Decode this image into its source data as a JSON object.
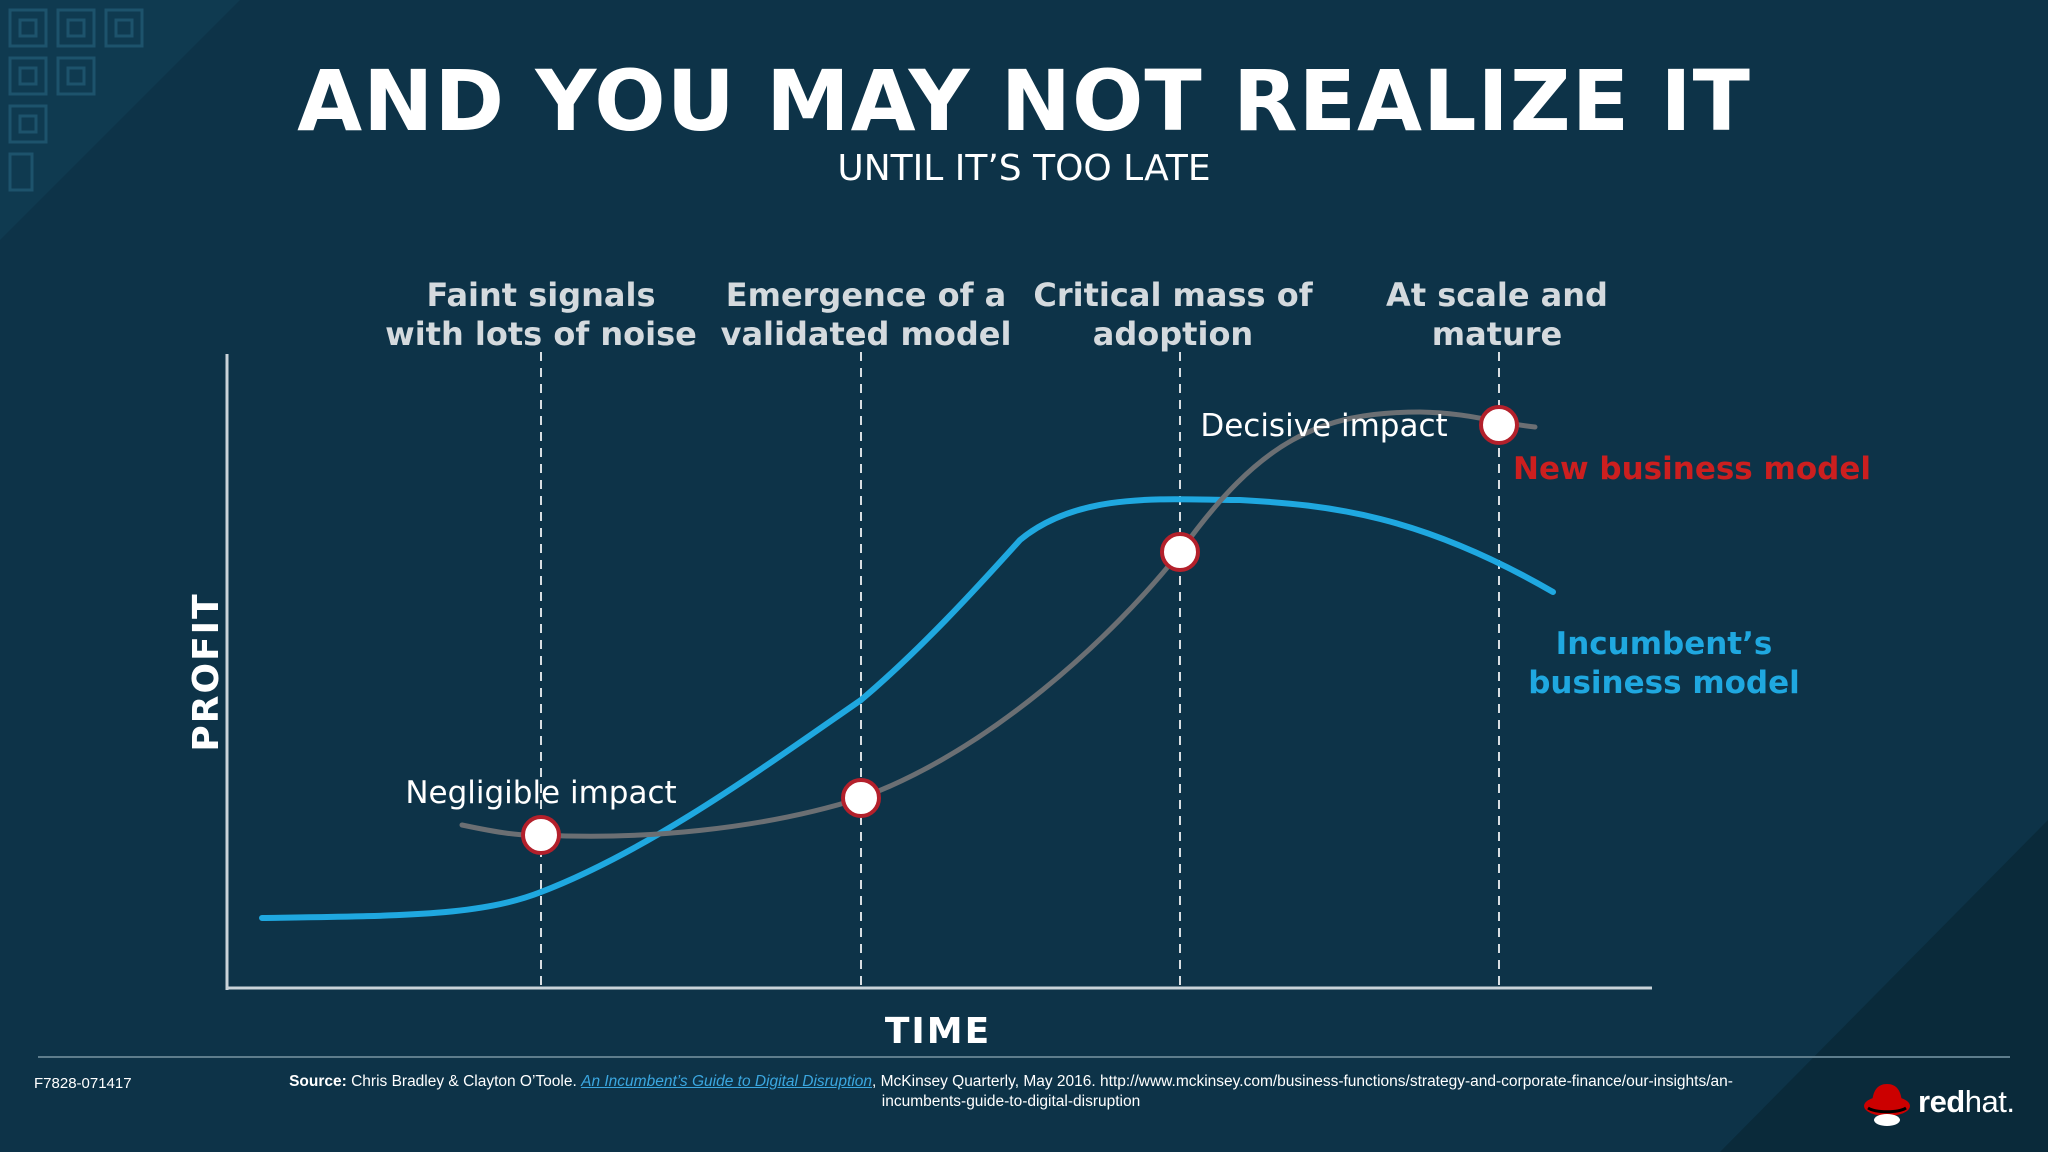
{
  "slide": {
    "title": "AND YOU MAY NOT REALIZE IT",
    "subtitle": "UNTIL IT’S TOO LATE"
  },
  "diagram": {
    "y_axis_label": "PROFIT",
    "x_axis_label": "TIME",
    "stages": [
      {
        "line1": "Faint signals",
        "line2": "with lots of noise"
      },
      {
        "line1": "Emergence of a",
        "line2": "validated model"
      },
      {
        "line1": "Critical mass of",
        "line2": "adoption"
      },
      {
        "line1": "At scale and",
        "line2": "mature"
      }
    ],
    "impact_labels": {
      "negligible": "Negligible impact",
      "decisive": "Decisive impact"
    },
    "curves": {
      "new": {
        "label": "New business model",
        "color": "#cc1f1f",
        "line_color": "#6b6f73"
      },
      "incumbent": {
        "line1": "Incumbent’s",
        "line2": "business model",
        "color": "#1fa8e0"
      }
    },
    "marker_colors": {
      "fill": "#ffffff",
      "stroke": "#b3202b"
    }
  },
  "footer": {
    "code": "F7828-071417",
    "source_label": "Source:",
    "source_authors": " Chris Bradley & Clayton O’Toole. ",
    "source_link": "An Incumbent’s Guide to Digital Disruption",
    "source_rest": ", McKinsey Quarterly, May 2016. http://www.mckinsey.com/business-functions/strategy-and-corporate-finance/our-insights/an-",
    "source_line2": "incumbents-guide-to-digital-disruption"
  },
  "logo": {
    "bold": "red",
    "light": "hat."
  },
  "colors": {
    "background": "#0d3348",
    "accent_dark": "#0a2838"
  }
}
